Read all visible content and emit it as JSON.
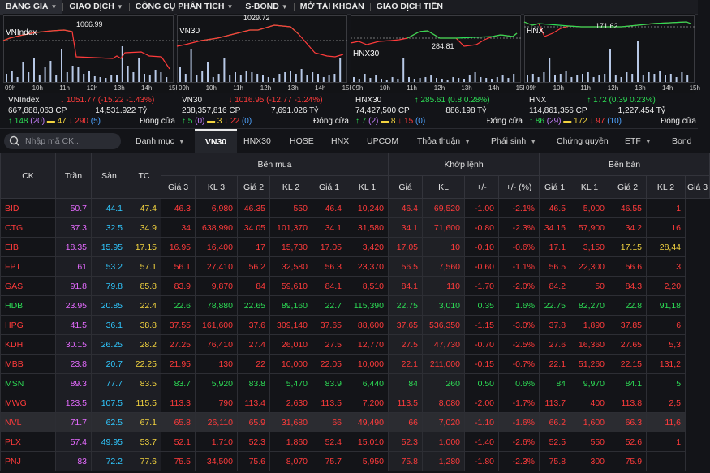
{
  "nav": {
    "items": [
      {
        "label": "BẢNG GIÁ",
        "dropdown": true
      },
      {
        "label": "GIAO DỊCH",
        "dropdown": true
      },
      {
        "label": "CÔNG CỤ PHÂN TÍCH",
        "dropdown": true
      },
      {
        "label": "S-BOND",
        "dropdown": true
      },
      {
        "label": "MỞ TÀI KHOẢN",
        "dropdown": false
      },
      {
        "label": "GIAO DỊCH TIỀN",
        "dropdown": false
      }
    ]
  },
  "indices": [
    {
      "name": "VNIndex",
      "peak": "1066.99",
      "value": "1051.77",
      "change": "(-15.22 -1.43%)",
      "direction": "down",
      "volume": "667,888,063 CP",
      "turnover": "14,531.922 Tỷ",
      "adv": "148",
      "ceil": "(20)",
      "unch": "47",
      "decl": "290",
      "floor": "(5)",
      "status": "Đóng cửa",
      "times": [
        "09h",
        "10h",
        "11h",
        "12h",
        "13h",
        "14h",
        "15h"
      ]
    },
    {
      "name": "VN30",
      "peak": "1029.72",
      "value": "1016.95",
      "change": "(-12.77 -1.24%)",
      "direction": "down",
      "volume": "238,357,816 CP",
      "turnover": "7,691.026 Tỷ",
      "adv": "5",
      "ceil": "(0)",
      "unch": "3",
      "decl": "22",
      "floor": "(0)",
      "status": "Đóng cửa",
      "times": [
        "09h",
        "10h",
        "11h",
        "12h",
        "13h",
        "14h",
        "15h"
      ]
    },
    {
      "name": "HNX30",
      "peak": "284.81",
      "value": "285.61",
      "change": "(0.8 0.28%)",
      "direction": "up",
      "volume": "74,427,500 CP",
      "turnover": "886.198 Tỷ",
      "adv": "7",
      "ceil": "(2)",
      "unch": "8",
      "decl": "15",
      "floor": "(0)",
      "status": "Đóng cửa",
      "times": [
        "09h",
        "10h",
        "11h",
        "12h",
        "13h",
        "14h",
        "15h"
      ]
    },
    {
      "name": "HNX",
      "peak": "171.62",
      "value": "172",
      "change": "(0.39 0.23%)",
      "direction": "up",
      "volume": "114,861,356 CP",
      "turnover": "1,227.454 Tỷ",
      "adv": "86",
      "ceil": "(29)",
      "unch": "172",
      "decl": "97",
      "floor": "(10)",
      "status": "Đóng cửa",
      "times": [
        "09h",
        "10h",
        "11h",
        "12h",
        "13h",
        "14h",
        "15h"
      ]
    }
  ],
  "toolbar": {
    "search_placeholder": "Nhập mã CK...",
    "tabs": [
      {
        "label": "Danh mục",
        "dropdown": true
      },
      {
        "label": "VN30",
        "dropdown": false,
        "active": true
      },
      {
        "label": "HNX30",
        "dropdown": false
      },
      {
        "label": "HOSE",
        "dropdown": false
      },
      {
        "label": "HNX",
        "dropdown": false
      },
      {
        "label": "UPCOM",
        "dropdown": false
      },
      {
        "label": "Thỏa thuận",
        "dropdown": true
      },
      {
        "label": "Phái sinh",
        "dropdown": true
      },
      {
        "label": "Chứng quyền",
        "dropdown": false
      },
      {
        "label": "ETF",
        "dropdown": true
      },
      {
        "label": "Bond",
        "dropdown": false
      }
    ]
  },
  "table": {
    "group_headers": {
      "buy": "Bên mua",
      "match": "Khớp lệnh",
      "sell": "Bên bán"
    },
    "columns": [
      "CK",
      "Trần",
      "Sàn",
      "TC",
      "Giá 3",
      "KL 3",
      "Giá 2",
      "KL 2",
      "Giá 1",
      "KL 1",
      "Giá",
      "KL",
      "+/-",
      "+/- (%)",
      "Giá 1",
      "KL 1",
      "Giá 2",
      "KL 2",
      "Giá 3"
    ],
    "rows": [
      {
        "sym": "BID",
        "c": "down",
        "cells": [
          "50.7",
          "44.1",
          "47.4",
          "46.3",
          "6,980",
          "46.35",
          "550",
          "46.4",
          "10,240",
          "46.4",
          "69,520",
          "-1.00",
          "-2.1%",
          "46.5",
          "5,000",
          "46.55",
          "1"
        ]
      },
      {
        "sym": "CTG",
        "c": "down",
        "cells": [
          "37.3",
          "32.5",
          "34.9",
          "34",
          "638,990",
          "34.05",
          "101,370",
          "34.1",
          "31,580",
          "34.1",
          "71,600",
          "-0.80",
          "-2.3%",
          "34.15",
          "57,900",
          "34.2",
          "16"
        ]
      },
      {
        "sym": "EIB",
        "c": "down",
        "cells": [
          "18.35",
          "15.95",
          "17.15",
          "16.95",
          "16,400",
          "17",
          "15,730",
          "17.05",
          "3,420",
          "17.05",
          "10",
          "-0.10",
          "-0.6%",
          "17.1",
          "3,150",
          "17.15",
          "28,44"
        ]
      },
      {
        "sym": "FPT",
        "c": "down",
        "cells": [
          "61",
          "53.2",
          "57.1",
          "56.1",
          "27,410",
          "56.2",
          "32,580",
          "56.3",
          "23,370",
          "56.5",
          "7,560",
          "-0.60",
          "-1.1%",
          "56.5",
          "22,300",
          "56.6",
          "3"
        ]
      },
      {
        "sym": "GAS",
        "c": "down",
        "cells": [
          "91.8",
          "79.8",
          "85.8",
          "83.9",
          "9,870",
          "84",
          "59,610",
          "84.1",
          "8,510",
          "84.1",
          "110",
          "-1.70",
          "-2.0%",
          "84.2",
          "50",
          "84.3",
          "2,20"
        ]
      },
      {
        "sym": "HDB",
        "c": "up",
        "cells": [
          "23.95",
          "20.85",
          "22.4",
          "22.6",
          "78,880",
          "22.65",
          "89,160",
          "22.7",
          "115,390",
          "22.75",
          "3,010",
          "0.35",
          "1.6%",
          "22.75",
          "82,270",
          "22.8",
          "91,18"
        ]
      },
      {
        "sym": "HPG",
        "c": "down",
        "cells": [
          "41.5",
          "36.1",
          "38.8",
          "37.55",
          "161,600",
          "37.6",
          "309,140",
          "37.65",
          "88,600",
          "37.65",
          "536,350",
          "-1.15",
          "-3.0%",
          "37.8",
          "1,890",
          "37.85",
          "6"
        ]
      },
      {
        "sym": "KDH",
        "c": "down",
        "cells": [
          "30.15",
          "26.25",
          "28.2",
          "27.25",
          "76,410",
          "27.4",
          "26,010",
          "27.5",
          "12,770",
          "27.5",
          "47,730",
          "-0.70",
          "-2.5%",
          "27.6",
          "16,360",
          "27.65",
          "5,3"
        ]
      },
      {
        "sym": "MBB",
        "c": "down",
        "cells": [
          "23.8",
          "20.7",
          "22.25",
          "21.95",
          "130",
          "22",
          "10,000",
          "22.05",
          "10,000",
          "22.1",
          "211,000",
          "-0.15",
          "-0.7%",
          "22.1",
          "51,260",
          "22.15",
          "131,2"
        ]
      },
      {
        "sym": "MSN",
        "c": "up",
        "cells": [
          "89.3",
          "77.7",
          "83.5",
          "83.7",
          "5,920",
          "83.8",
          "5,470",
          "83.9",
          "6,440",
          "84",
          "260",
          "0.50",
          "0.6%",
          "84",
          "9,970",
          "84.1",
          "5"
        ]
      },
      {
        "sym": "MWG",
        "c": "down",
        "cells": [
          "123.5",
          "107.5",
          "115.5",
          "113.3",
          "790",
          "113.4",
          "2,630",
          "113.5",
          "7,200",
          "113.5",
          "8,080",
          "-2.00",
          "-1.7%",
          "113.7",
          "400",
          "113.8",
          "2,5"
        ]
      },
      {
        "sym": "NVL",
        "c": "down",
        "cells": [
          "71.7",
          "62.5",
          "67.1",
          "65.8",
          "26,110",
          "65.9",
          "31,680",
          "66",
          "49,490",
          "66",
          "7,020",
          "-1.10",
          "-1.6%",
          "66.2",
          "1,600",
          "66.3",
          "11,6"
        ]
      },
      {
        "sym": "PLX",
        "c": "down",
        "cells": [
          "57.4",
          "49.95",
          "53.7",
          "52.1",
          "1,710",
          "52.3",
          "1,860",
          "52.4",
          "15,010",
          "52.3",
          "1,000",
          "-1.40",
          "-2.6%",
          "52.5",
          "550",
          "52.6",
          "1"
        ]
      },
      {
        "sym": "PNJ",
        "c": "down",
        "cells": [
          "83",
          "72.2",
          "77.6",
          "75.5",
          "34,500",
          "75.6",
          "8,070",
          "75.7",
          "5,950",
          "75.8",
          "1,280",
          "-1.80",
          "-2.3%",
          "75.8",
          "300",
          "75.9",
          ""
        ]
      }
    ]
  }
}
